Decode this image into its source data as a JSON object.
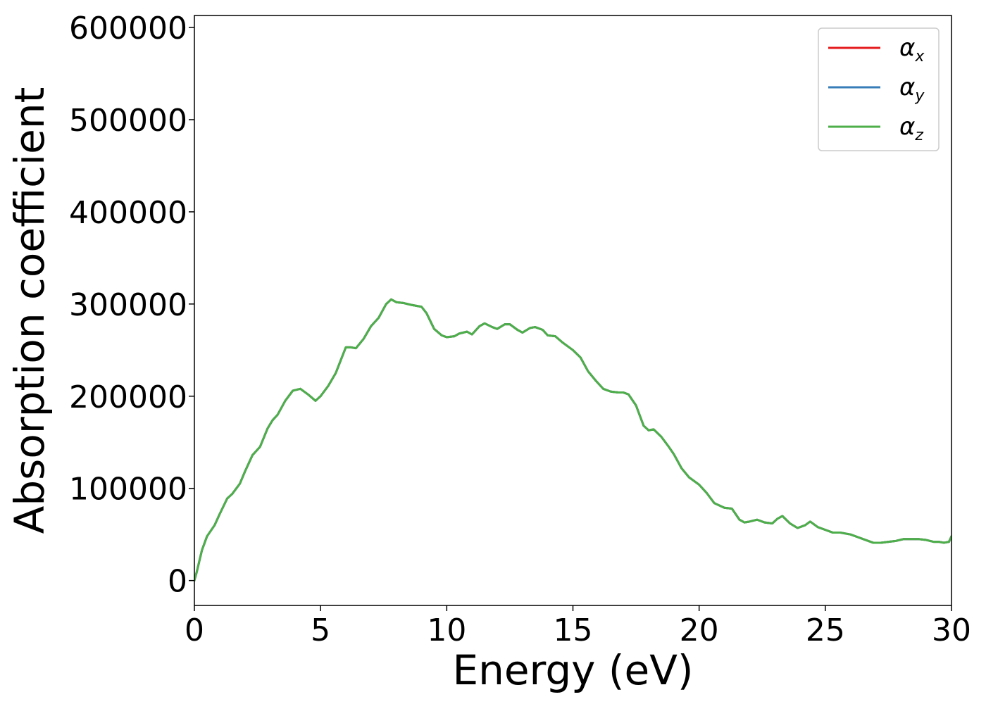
{
  "chart_data": {
    "type": "line",
    "title": "",
    "xlabel": "Energy (eV)",
    "ylabel": "Absorption coefficient",
    "xlim": [
      0,
      30
    ],
    "ylim": [
      -27000,
      613000
    ],
    "xticks": [
      0,
      5,
      10,
      15,
      20,
      25,
      30
    ],
    "xtick_labels": [
      "0",
      "5",
      "10",
      "15",
      "20",
      "25",
      "30"
    ],
    "yticks": [
      0,
      100000,
      200000,
      300000,
      400000,
      500000,
      600000
    ],
    "ytick_labels": [
      "0",
      "100000",
      "200000",
      "300000",
      "400000",
      "500000",
      "600000"
    ],
    "grid": false,
    "legend_position": "top-right",
    "legend": [
      {
        "symbol": "α",
        "subscript": "x",
        "color": "#e41a1c"
      },
      {
        "symbol": "α",
        "subscript": "y",
        "color": "#377eb8"
      },
      {
        "symbol": "α",
        "subscript": "z",
        "color": "#4daf4a"
      }
    ],
    "x": [
      0,
      0.1,
      0.3,
      0.5,
      0.8,
      1.0,
      1.3,
      1.5,
      1.8,
      2.0,
      2.3,
      2.6,
      2.9,
      3.1,
      3.3,
      3.6,
      3.9,
      4.2,
      4.5,
      4.8,
      5.0,
      5.3,
      5.6,
      6.0,
      6.2,
      6.4,
      6.7,
      7.0,
      7.3,
      7.6,
      7.8,
      8.0,
      8.3,
      8.6,
      9.0,
      9.2,
      9.5,
      9.8,
      10.0,
      10.3,
      10.5,
      10.8,
      11.0,
      11.3,
      11.5,
      11.8,
      12.0,
      12.3,
      12.5,
      12.8,
      13.0,
      13.3,
      13.5,
      13.8,
      14.0,
      14.3,
      14.6,
      15.0,
      15.3,
      15.6,
      15.9,
      16.2,
      16.5,
      16.8,
      17.0,
      17.2,
      17.5,
      17.8,
      18.0,
      18.2,
      18.5,
      18.8,
      19.0,
      19.3,
      19.6,
      20.0,
      20.3,
      20.6,
      21.0,
      21.3,
      21.6,
      21.8,
      22.0,
      22.3,
      22.6,
      22.9,
      23.1,
      23.3,
      23.6,
      23.9,
      24.2,
      24.4,
      24.7,
      25.0,
      25.3,
      25.6,
      26.0,
      26.3,
      26.6,
      26.9,
      27.2,
      27.5,
      27.8,
      28.1,
      28.4,
      28.7,
      29.0,
      29.3,
      29.5,
      29.7,
      29.9,
      30.0
    ],
    "series": [
      {
        "name": "α_x",
        "color": "#e41a1c",
        "values": [
          0,
          10000,
          33000,
          48000,
          60000,
          72000,
          89000,
          94000,
          105000,
          118000,
          136000,
          145000,
          165000,
          174000,
          180000,
          195000,
          206000,
          208000,
          202000,
          195000,
          200000,
          211000,
          225000,
          253000,
          253000,
          252000,
          262000,
          276000,
          285000,
          300000,
          305000,
          302000,
          301000,
          299000,
          297000,
          290000,
          273000,
          266000,
          264000,
          265000,
          268000,
          270000,
          267000,
          276000,
          279000,
          275000,
          273000,
          278000,
          278000,
          272000,
          269000,
          274000,
          275000,
          272000,
          266000,
          265000,
          258000,
          250000,
          242000,
          227000,
          217000,
          208000,
          205000,
          204000,
          204000,
          202000,
          190000,
          168000,
          163000,
          164000,
          156000,
          145000,
          137000,
          122000,
          112000,
          104000,
          95000,
          84000,
          79000,
          78000,
          66000,
          63000,
          64000,
          66000,
          63000,
          62000,
          67000,
          70000,
          62000,
          57000,
          60000,
          64000,
          58000,
          55000,
          52000,
          52000,
          50000,
          47000,
          44000,
          41000,
          41000,
          42000,
          43000,
          45000,
          45000,
          45000,
          44000,
          42000,
          42000,
          41000,
          42000,
          48000
        ]
      },
      {
        "name": "α_y",
        "color": "#377eb8",
        "values": [
          0,
          10000,
          33000,
          48000,
          60000,
          72000,
          89000,
          94000,
          105000,
          118000,
          136000,
          145000,
          165000,
          174000,
          180000,
          195000,
          206000,
          208000,
          202000,
          195000,
          200000,
          211000,
          225000,
          253000,
          253000,
          252000,
          262000,
          276000,
          285000,
          300000,
          305000,
          302000,
          301000,
          299000,
          297000,
          290000,
          273000,
          266000,
          264000,
          265000,
          268000,
          270000,
          267000,
          276000,
          279000,
          275000,
          273000,
          278000,
          278000,
          272000,
          269000,
          274000,
          275000,
          272000,
          266000,
          265000,
          258000,
          250000,
          242000,
          227000,
          217000,
          208000,
          205000,
          204000,
          204000,
          202000,
          190000,
          168000,
          163000,
          164000,
          156000,
          145000,
          137000,
          122000,
          112000,
          104000,
          95000,
          84000,
          79000,
          78000,
          66000,
          63000,
          64000,
          66000,
          63000,
          62000,
          67000,
          70000,
          62000,
          57000,
          60000,
          64000,
          58000,
          55000,
          52000,
          52000,
          50000,
          47000,
          44000,
          41000,
          41000,
          42000,
          43000,
          45000,
          45000,
          45000,
          44000,
          42000,
          42000,
          41000,
          42000,
          48000
        ]
      },
      {
        "name": "α_z",
        "color": "#4daf4a",
        "values": [
          0,
          10000,
          33000,
          48000,
          60000,
          72000,
          89000,
          94000,
          105000,
          118000,
          136000,
          145000,
          165000,
          174000,
          180000,
          195000,
          206000,
          208000,
          202000,
          195000,
          200000,
          211000,
          225000,
          253000,
          253000,
          252000,
          262000,
          276000,
          285000,
          300000,
          305000,
          302000,
          301000,
          299000,
          297000,
          290000,
          273000,
          266000,
          264000,
          265000,
          268000,
          270000,
          267000,
          276000,
          279000,
          275000,
          273000,
          278000,
          278000,
          272000,
          269000,
          274000,
          275000,
          272000,
          266000,
          265000,
          258000,
          250000,
          242000,
          227000,
          217000,
          208000,
          205000,
          204000,
          204000,
          202000,
          190000,
          168000,
          163000,
          164000,
          156000,
          145000,
          137000,
          122000,
          112000,
          104000,
          95000,
          84000,
          79000,
          78000,
          66000,
          63000,
          64000,
          66000,
          63000,
          62000,
          67000,
          70000,
          62000,
          57000,
          60000,
          64000,
          58000,
          55000,
          52000,
          52000,
          50000,
          47000,
          44000,
          41000,
          41000,
          42000,
          43000,
          45000,
          45000,
          45000,
          44000,
          42000,
          42000,
          41000,
          42000,
          48000
        ]
      }
    ]
  }
}
